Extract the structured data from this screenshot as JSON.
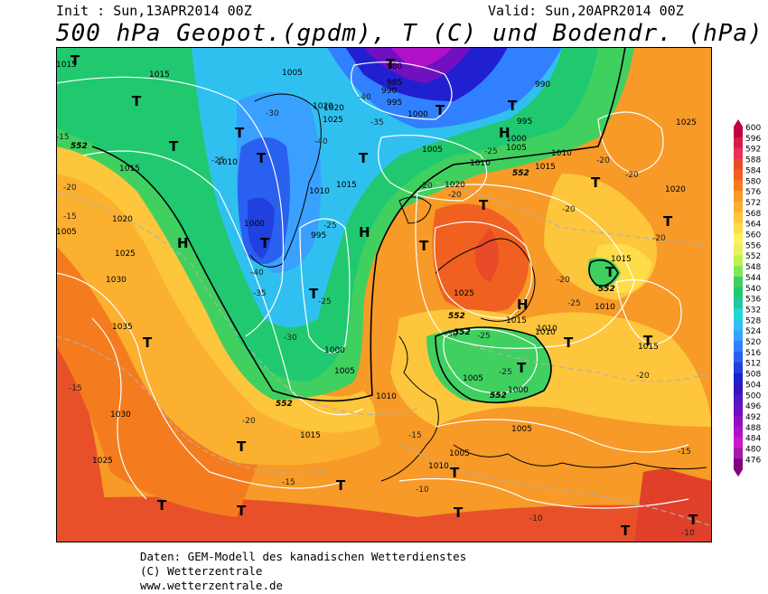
{
  "header": {
    "init": "Init : Sun,13APR2014 00Z",
    "valid": "Valid: Sun,20APR2014 00Z",
    "title": "500 hPa Geopot.(gpdm), T (C) und Bodendr. (hPa)"
  },
  "footer": {
    "line1": "Daten: GEM-Modell des kanadischen Wetterdienstes",
    "line2": "(C) Wetterzentrale",
    "line3": "www.wetterzentrale.de"
  },
  "legend": {
    "values": [
      600,
      596,
      592,
      588,
      584,
      580,
      576,
      572,
      568,
      564,
      560,
      556,
      552,
      548,
      544,
      540,
      536,
      532,
      528,
      524,
      520,
      516,
      512,
      508,
      504,
      500,
      496,
      492,
      488,
      484,
      480,
      476
    ],
    "colors": [
      "#c00040",
      "#d81a4a",
      "#e8305a",
      "#e84a2a",
      "#f06020",
      "#f57c1e",
      "#f79a28",
      "#fbb030",
      "#fdc63c",
      "#fedd48",
      "#fff060",
      "#e6f060",
      "#c0f050",
      "#80e858",
      "#40d060",
      "#20c870",
      "#20c8a0",
      "#20d8d8",
      "#30c0f0",
      "#3aa0ff",
      "#3080ff",
      "#2a60f0",
      "#2040e0",
      "#2020d0",
      "#3018c0",
      "#5018c0",
      "#7010c0",
      "#9010c0",
      "#b010c8",
      "#c818c8",
      "#a818a8",
      "#800080"
    ]
  },
  "map_labels": {
    "highs": [
      "H",
      "H",
      "H",
      "H"
    ],
    "lows": [
      "T",
      "T",
      "T",
      "T",
      "T",
      "T",
      "T",
      "T",
      "T",
      "T",
      "T",
      "T",
      "T",
      "T",
      "T",
      "T",
      "T",
      "T",
      "T",
      "T",
      "T",
      "T",
      "T",
      "T",
      "T",
      "T",
      "T",
      "T"
    ],
    "isobar_labels": [
      "1015",
      "1015",
      "1010",
      "1020",
      "1025",
      "1005",
      "1015",
      "1030",
      "1035",
      "1030",
      "1025",
      "1020",
      "1000",
      "995",
      "1005",
      "1010",
      "1015",
      "1000",
      "1005",
      "1010",
      "1015",
      "1020",
      "1025",
      "980",
      "985",
      "990",
      "995",
      "1000",
      "1005",
      "1010",
      "1020",
      "1025",
      "1015",
      "1010",
      "1005",
      "1000",
      "1005",
      "1015",
      "1020",
      "1010",
      "1015",
      "1005",
      "1010",
      "1010",
      "990",
      "995",
      "1000",
      "1005",
      "1010",
      "1025",
      "1015"
    ],
    "temperature_labels": [
      "-20",
      "-15",
      "-15",
      "-25",
      "-30",
      "-35",
      "-40",
      "-40",
      "-35",
      "-40",
      "-25",
      "-30",
      "-25",
      "-20",
      "-20",
      "-25",
      "-20",
      "-20",
      "-20",
      "-15",
      "-15",
      "-10",
      "-10",
      "-20",
      "-25",
      "-30",
      "-25",
      "-20",
      "-20",
      "-15",
      "-15",
      "-10",
      "-20",
      "-25"
    ],
    "geopotential_labels": [
      "552",
      "552",
      "552",
      "552",
      "552",
      "552",
      "552"
    ]
  }
}
